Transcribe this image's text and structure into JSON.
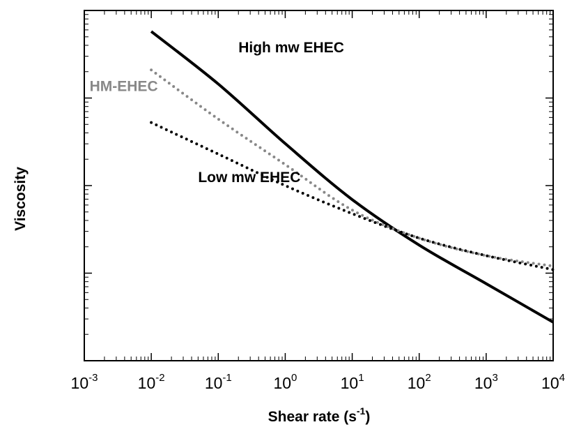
{
  "chart_data": {
    "type": "line",
    "xlabel": "Shear rate (s",
    "xlabel_sup": "-1",
    "xlabel_end": ")",
    "ylabel": "Viscosity",
    "x_scale": "log",
    "y_scale": "log",
    "xlim": [
      0.001,
      10000
    ],
    "grid": false,
    "x_ticks": [
      {
        "base": "10",
        "exp": "-3",
        "value": 0.001
      },
      {
        "base": "10",
        "exp": "-2",
        "value": 0.01
      },
      {
        "base": "10",
        "exp": "-1",
        "value": 0.1
      },
      {
        "base": "10",
        "exp": "0",
        "value": 1
      },
      {
        "base": "10",
        "exp": "1",
        "value": 10
      },
      {
        "base": "10",
        "exp": "2",
        "value": 100
      },
      {
        "base": "10",
        "exp": "3",
        "value": 1000
      },
      {
        "base": "10",
        "exp": "4",
        "value": 10000
      }
    ],
    "series": [
      {
        "name": "High mw EHEC",
        "color": "#000000",
        "style": "solid",
        "x": [
          0.01,
          0.1,
          1,
          10,
          100,
          1000,
          10000
        ],
        "y_rel": [
          0.94,
          0.79,
          0.62,
          0.46,
          0.33,
          0.22,
          0.11
        ]
      },
      {
        "name": "HM-EHEC",
        "color": "#888888",
        "style": "dotted",
        "x": [
          0.01,
          0.1,
          1,
          10,
          100,
          1000,
          10000
        ],
        "y_rel": [
          0.83,
          0.69,
          0.56,
          0.43,
          0.35,
          0.3,
          0.27
        ]
      },
      {
        "name": "Low mw EHEC",
        "color": "#000000",
        "style": "dotted",
        "x": [
          0.01,
          0.1,
          1,
          10,
          100,
          1000,
          10000
        ],
        "y_rel": [
          0.68,
          0.59,
          0.5,
          0.42,
          0.35,
          0.3,
          0.26
        ]
      }
    ],
    "annotations": [
      {
        "text": "High mw EHEC",
        "color": "#000000",
        "anchor_x": 0.2,
        "anchor_y_rel": 0.88
      },
      {
        "text": "HM-EHEC",
        "color": "#888888",
        "anchor_x": 0.0012,
        "anchor_y_rel": 0.77
      },
      {
        "text": "Low mw EHEC",
        "color": "#000000",
        "anchor_x": 0.05,
        "anchor_y_rel": 0.51
      }
    ]
  }
}
